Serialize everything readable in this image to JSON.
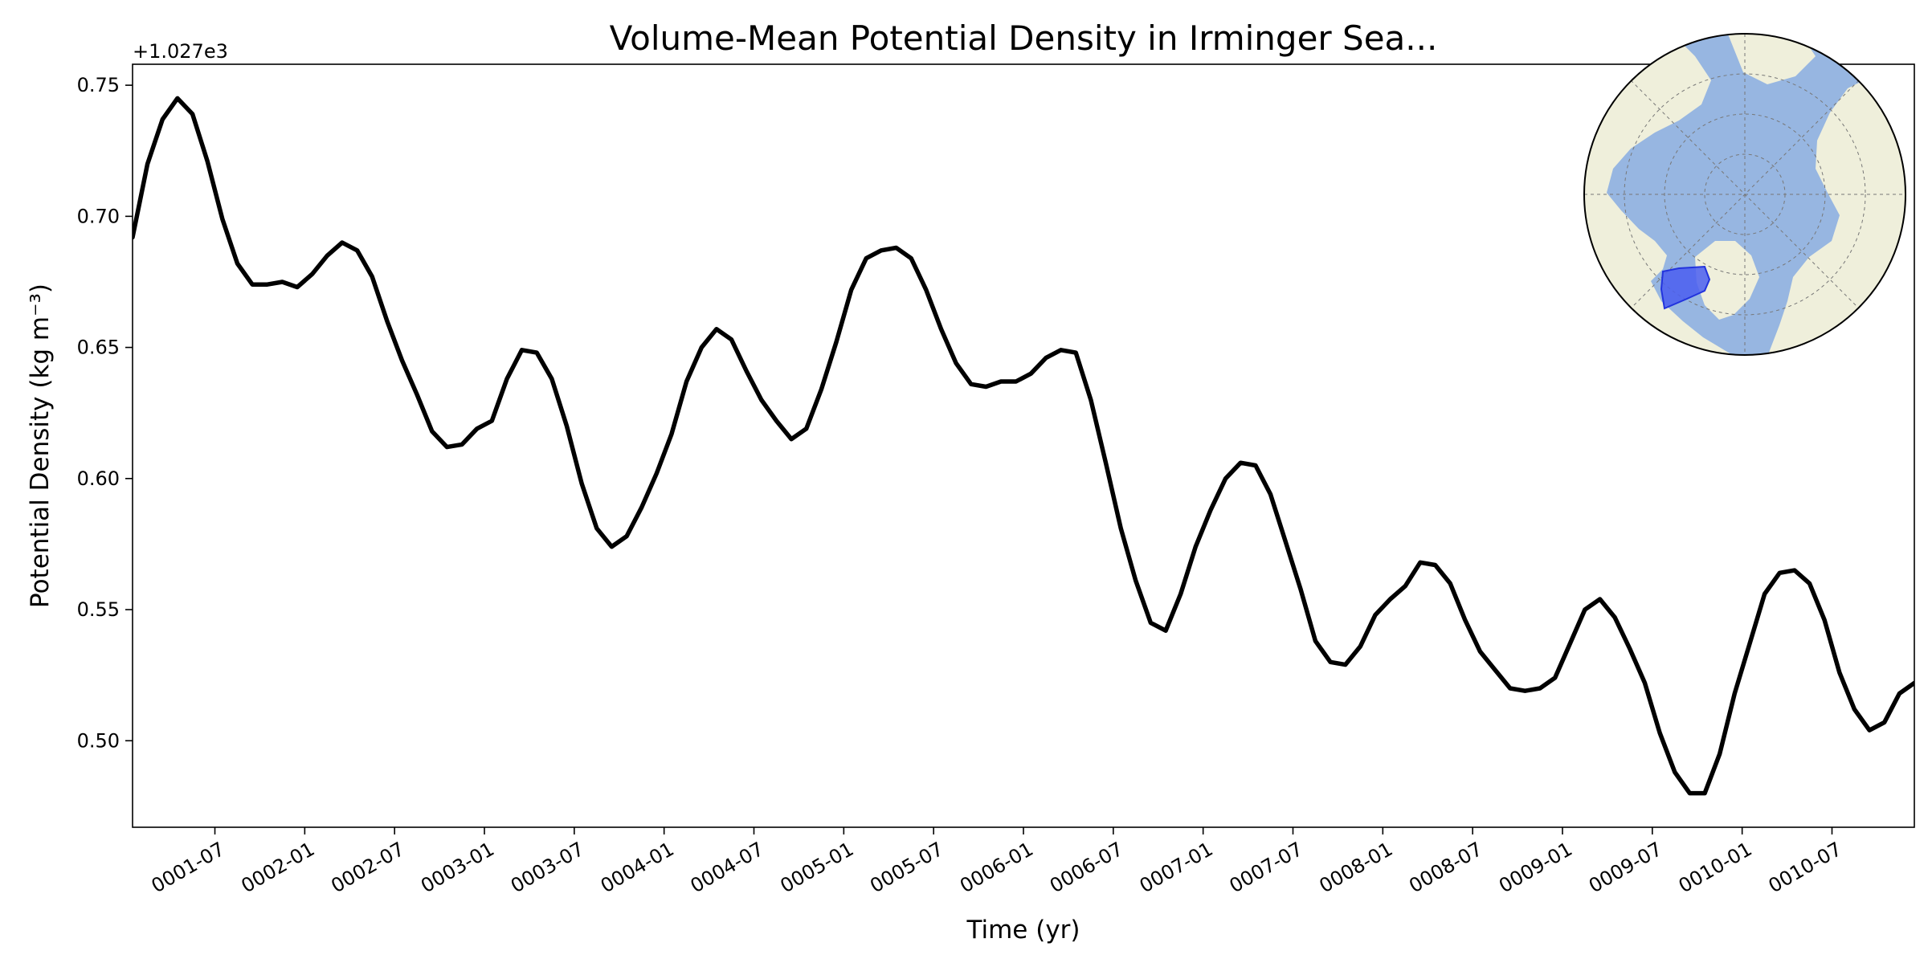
{
  "chart_data": {
    "type": "line",
    "title": "Volume-Mean Potential Density in Irminger Sea...",
    "xlabel": "Time (yr)",
    "ylabel": "Potential Density (kg m⁻³)",
    "y_offset_label": "+1.027e3",
    "ylim": [
      0.467,
      0.758
    ],
    "y_ticks": [
      0.5,
      0.55,
      0.6,
      0.65,
      0.7,
      0.75
    ],
    "y_tick_labels": [
      "0.50",
      "0.55",
      "0.60",
      "0.65",
      "0.70",
      "0.75"
    ],
    "x_range_months": [
      0,
      119
    ],
    "x_ticks": [
      5.5,
      11.5,
      17.5,
      23.5,
      29.5,
      35.5,
      41.5,
      47.5,
      53.5,
      59.5,
      65.5,
      71.5,
      77.5,
      83.5,
      89.5,
      95.5,
      101.5,
      107.5,
      113.5
    ],
    "x_tick_labels": [
      "0001-07",
      "0002-01",
      "0002-07",
      "0003-01",
      "0003-07",
      "0004-01",
      "0004-07",
      "0005-01",
      "0005-07",
      "0006-01",
      "0006-07",
      "0007-01",
      "0007-07",
      "0008-01",
      "0008-07",
      "0009-01",
      "0009-07",
      "0010-01",
      "0010-07"
    ],
    "series": [
      {
        "name": "Irminger Sea",
        "color": "#000000",
        "values": [
          0.692,
          0.72,
          0.737,
          0.745,
          0.739,
          0.721,
          0.699,
          0.682,
          0.674,
          0.674,
          0.675,
          0.673,
          0.678,
          0.685,
          0.69,
          0.687,
          0.677,
          0.66,
          0.645,
          0.632,
          0.618,
          0.612,
          0.613,
          0.619,
          0.622,
          0.638,
          0.649,
          0.648,
          0.638,
          0.62,
          0.598,
          0.581,
          0.574,
          0.578,
          0.589,
          0.602,
          0.617,
          0.637,
          0.65,
          0.657,
          0.653,
          0.641,
          0.63,
          0.622,
          0.615,
          0.619,
          0.634,
          0.652,
          0.672,
          0.684,
          0.687,
          0.688,
          0.684,
          0.672,
          0.657,
          0.644,
          0.636,
          0.635,
          0.637,
          0.637,
          0.64,
          0.646,
          0.649,
          0.648,
          0.63,
          0.606,
          0.581,
          0.561,
          0.545,
          0.542,
          0.556,
          0.574,
          0.588,
          0.6,
          0.606,
          0.605,
          0.594,
          0.576,
          0.558,
          0.538,
          0.53,
          0.529,
          0.536,
          0.548,
          0.554,
          0.559,
          0.568,
          0.567,
          0.56,
          0.546,
          0.534,
          0.527,
          0.52,
          0.519,
          0.52,
          0.524,
          0.537,
          0.55,
          0.554,
          0.547,
          0.535,
          0.522,
          0.503,
          0.488,
          0.48,
          0.48,
          0.495,
          0.518,
          0.537,
          0.556,
          0.564,
          0.565,
          0.56,
          0.546,
          0.526,
          0.512,
          0.504,
          0.507,
          0.518,
          0.522
        ]
      }
    ]
  },
  "inset_map": {
    "description_icon": "north-polar-map-icon",
    "ocean_color": "#97b6e1",
    "land_color": "#efefdb",
    "region_color": "#4a5ef0"
  }
}
